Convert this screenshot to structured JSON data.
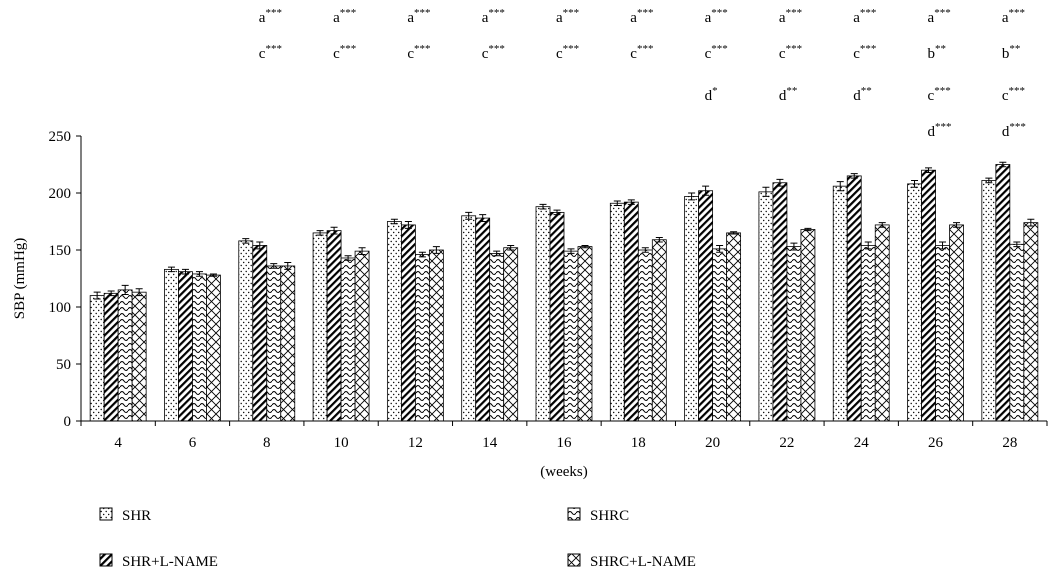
{
  "chart_data": {
    "type": "bar",
    "ylabel": "SBP (mmHg)",
    "xlabel": "(weeks)",
    "ylim": [
      0,
      250
    ],
    "yticks": [
      0,
      50,
      100,
      150,
      200,
      250
    ],
    "grid": false,
    "legend_position": "bottom",
    "categories": [
      "4",
      "6",
      "8",
      "10",
      "12",
      "14",
      "16",
      "18",
      "20",
      "22",
      "24",
      "26",
      "28"
    ],
    "series": [
      {
        "name": "SHR",
        "pattern": "dots",
        "values": [
          110,
          133,
          158,
          165,
          175,
          180,
          188,
          191,
          197,
          201,
          206,
          208,
          211
        ],
        "errors": [
          3,
          2,
          2,
          2,
          2,
          3,
          2,
          2,
          3,
          4,
          4,
          3,
          2
        ]
      },
      {
        "name": "SHR+L-NAME",
        "pattern": "diagonal",
        "values": [
          112,
          131,
          154,
          167,
          172,
          178,
          183,
          192,
          202,
          209,
          215,
          220,
          225
        ],
        "errors": [
          2,
          2,
          3,
          3,
          3,
          3,
          2,
          2,
          4,
          3,
          2,
          2,
          2
        ]
      },
      {
        "name": "SHRC",
        "pattern": "wavy",
        "values": [
          115,
          129,
          136,
          143,
          146,
          147,
          149,
          150,
          151,
          153,
          154,
          154,
          155
        ],
        "errors": [
          4,
          2,
          2,
          2,
          2,
          2,
          2,
          2,
          3,
          3,
          3,
          3,
          2
        ]
      },
      {
        "name": "SHRC+L-NAME",
        "pattern": "cross",
        "values": [
          113,
          128,
          136,
          149,
          150,
          152,
          153,
          159,
          165,
          168,
          172,
          172,
          174
        ],
        "errors": [
          3,
          1,
          3,
          3,
          3,
          2,
          1,
          2,
          1,
          1,
          2,
          2,
          3
        ]
      }
    ],
    "annotations": [
      {
        "category": "8",
        "lines": [
          [
            "a",
            "***"
          ],
          [
            "c",
            "***"
          ]
        ]
      },
      {
        "category": "10",
        "lines": [
          [
            "a",
            "***"
          ],
          [
            "c",
            "***"
          ]
        ]
      },
      {
        "category": "12",
        "lines": [
          [
            "a",
            "***"
          ],
          [
            "c",
            "***"
          ]
        ]
      },
      {
        "category": "14",
        "lines": [
          [
            "a",
            "***"
          ],
          [
            "c",
            "***"
          ]
        ]
      },
      {
        "category": "16",
        "lines": [
          [
            "a",
            "***"
          ],
          [
            "c",
            "***"
          ]
        ]
      },
      {
        "category": "18",
        "lines": [
          [
            "a",
            "***"
          ],
          [
            "c",
            "***"
          ]
        ]
      },
      {
        "category": "20",
        "lines": [
          [
            "a",
            "***"
          ],
          [
            "c",
            "***"
          ],
          [
            "d",
            "*"
          ]
        ]
      },
      {
        "category": "22",
        "lines": [
          [
            "a",
            "***"
          ],
          [
            "c",
            "***"
          ],
          [
            "d",
            "**"
          ]
        ]
      },
      {
        "category": "24",
        "lines": [
          [
            "a",
            "***"
          ],
          [
            "c",
            "***"
          ],
          [
            "d",
            "**"
          ]
        ]
      },
      {
        "category": "26",
        "lines": [
          [
            "a",
            "***"
          ],
          [
            "b",
            "**"
          ],
          [
            "c",
            "***"
          ],
          [
            "d",
            "***"
          ]
        ]
      },
      {
        "category": "28",
        "lines": [
          [
            "a",
            "***"
          ],
          [
            "b",
            "**"
          ],
          [
            "c",
            "***"
          ],
          [
            "d",
            "***"
          ]
        ]
      }
    ],
    "legend": [
      {
        "label": "SHR",
        "pattern": "dots"
      },
      {
        "label": "SHRC",
        "pattern": "wavy"
      },
      {
        "label": "SHR+L-NAME",
        "pattern": "diagonal"
      },
      {
        "label": "SHRC+L-NAME",
        "pattern": "cross"
      }
    ]
  }
}
